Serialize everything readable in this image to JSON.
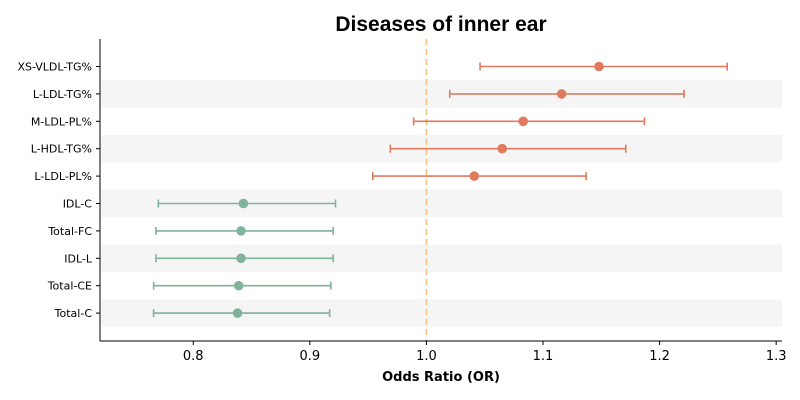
{
  "chart_data": {
    "type": "forest",
    "title": "Diseases of inner ear",
    "xlabel": "Odds Ratio (OR)",
    "ylabel": "",
    "xlim": [
      0.72,
      1.305
    ],
    "xticks": [
      "0.8",
      "0.9",
      "1.0",
      "1.1",
      "1.2",
      "1.3"
    ],
    "reference_line": 1.0,
    "colors": {
      "positive": "#e07a5f",
      "negative": "#81b29a",
      "reference": "#f4c27f",
      "band": "#f5f5f5"
    },
    "rows": [
      {
        "label": "XS-VLDL-TG%",
        "or": 1.148,
        "lower": 1.046,
        "upper": 1.258
      },
      {
        "label": "L-LDL-TG%",
        "or": 1.116,
        "lower": 1.02,
        "upper": 1.221
      },
      {
        "label": "M-LDL-PL%",
        "or": 1.083,
        "lower": 0.989,
        "upper": 1.187
      },
      {
        "label": "L-HDL-TG%",
        "or": 1.065,
        "lower": 0.969,
        "upper": 1.171
      },
      {
        "label": "L-LDL-PL%",
        "or": 1.041,
        "lower": 0.954,
        "upper": 1.137
      },
      {
        "label": "IDL-C",
        "or": 0.843,
        "lower": 0.77,
        "upper": 0.922
      },
      {
        "label": "Total-FC",
        "or": 0.841,
        "lower": 0.768,
        "upper": 0.92
      },
      {
        "label": "IDL-L",
        "or": 0.841,
        "lower": 0.768,
        "upper": 0.92
      },
      {
        "label": "Total-CE",
        "or": 0.839,
        "lower": 0.766,
        "upper": 0.918
      },
      {
        "label": "Total-C",
        "or": 0.838,
        "lower": 0.766,
        "upper": 0.917
      }
    ]
  }
}
